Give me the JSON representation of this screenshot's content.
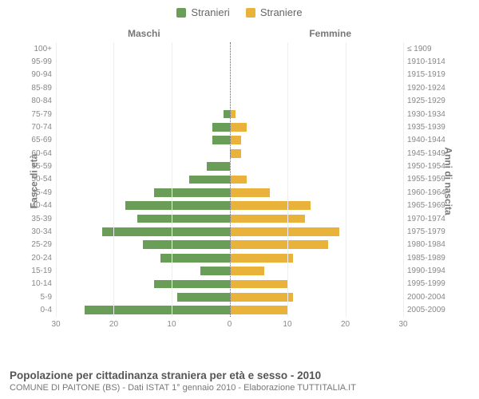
{
  "legend": {
    "male": {
      "label": "Stranieri",
      "color": "#6a9e58"
    },
    "female": {
      "label": "Straniere",
      "color": "#e9b23a"
    }
  },
  "columns": {
    "left": "Maschi",
    "right": "Femmine"
  },
  "yaxis": {
    "left": "Fasce di età",
    "right": "Anni di nascita"
  },
  "xaxis": {
    "max_left": 30,
    "max_right": 30,
    "ticks_left": [
      30,
      20,
      10,
      0
    ],
    "ticks_right": [
      0,
      10,
      20,
      30
    ],
    "tick_step": 10
  },
  "chart": {
    "type": "population-pyramid",
    "bar_color_left": "#6a9e58",
    "bar_color_right": "#e9b23a",
    "grid_color": "#eeeeee",
    "center_line_color": "#666666",
    "background_color": "#ffffff",
    "label_color": "#888888"
  },
  "rows": [
    {
      "age": "100+",
      "birth": "≤ 1909",
      "m": 0,
      "f": 0
    },
    {
      "age": "95-99",
      "birth": "1910-1914",
      "m": 0,
      "f": 0
    },
    {
      "age": "90-94",
      "birth": "1915-1919",
      "m": 0,
      "f": 0
    },
    {
      "age": "85-89",
      "birth": "1920-1924",
      "m": 0,
      "f": 0
    },
    {
      "age": "80-84",
      "birth": "1925-1929",
      "m": 0,
      "f": 0
    },
    {
      "age": "75-79",
      "birth": "1930-1934",
      "m": 1,
      "f": 1
    },
    {
      "age": "70-74",
      "birth": "1935-1939",
      "m": 3,
      "f": 3
    },
    {
      "age": "65-69",
      "birth": "1940-1944",
      "m": 3,
      "f": 2
    },
    {
      "age": "60-64",
      "birth": "1945-1949",
      "m": 0,
      "f": 2
    },
    {
      "age": "55-59",
      "birth": "1950-1954",
      "m": 4,
      "f": 0
    },
    {
      "age": "50-54",
      "birth": "1955-1959",
      "m": 7,
      "f": 3
    },
    {
      "age": "45-49",
      "birth": "1960-1964",
      "m": 13,
      "f": 7
    },
    {
      "age": "40-44",
      "birth": "1965-1969",
      "m": 18,
      "f": 14
    },
    {
      "age": "35-39",
      "birth": "1970-1974",
      "m": 16,
      "f": 13
    },
    {
      "age": "30-34",
      "birth": "1975-1979",
      "m": 22,
      "f": 19
    },
    {
      "age": "25-29",
      "birth": "1980-1984",
      "m": 15,
      "f": 17
    },
    {
      "age": "20-24",
      "birth": "1985-1989",
      "m": 12,
      "f": 11
    },
    {
      "age": "15-19",
      "birth": "1990-1994",
      "m": 5,
      "f": 6
    },
    {
      "age": "10-14",
      "birth": "1995-1999",
      "m": 13,
      "f": 10
    },
    {
      "age": "5-9",
      "birth": "2000-2004",
      "m": 9,
      "f": 11
    },
    {
      "age": "0-4",
      "birth": "2005-2009",
      "m": 25,
      "f": 10
    }
  ],
  "caption": {
    "title": "Popolazione per cittadinanza straniera per età e sesso - 2010",
    "subtitle": "COMUNE DI PAITONE (BS) - Dati ISTAT 1° gennaio 2010 - Elaborazione TUTTITALIA.IT"
  }
}
